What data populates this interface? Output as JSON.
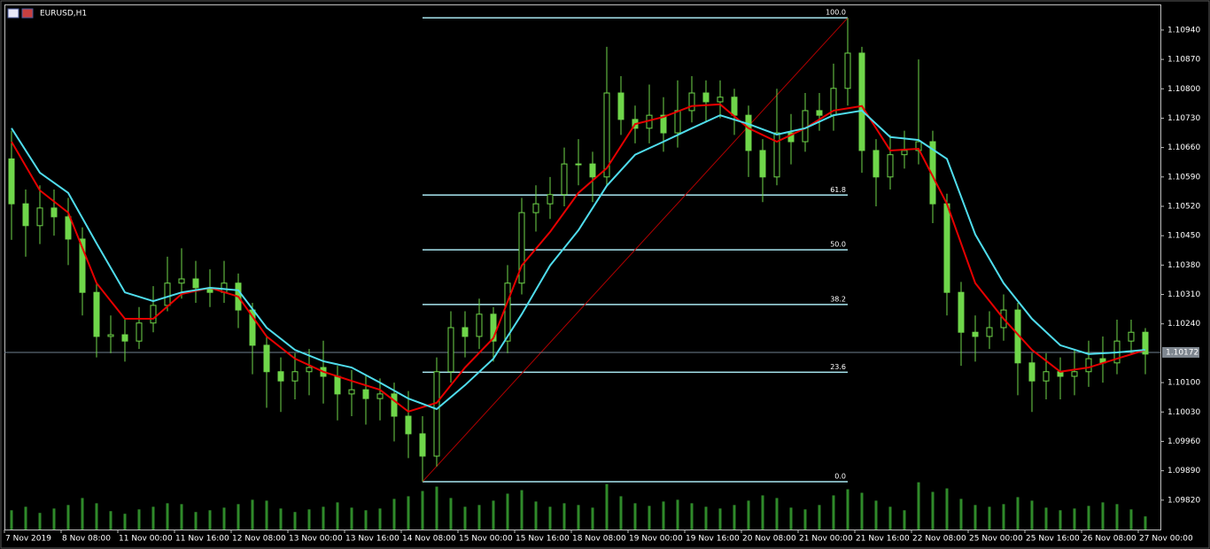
{
  "chart_data": {
    "type": "candlestick",
    "title": "EURUSD,H1",
    "categories": [
      "7 Nov 2019",
      null,
      null,
      null,
      "8 Nov 08:00",
      null,
      null,
      null,
      "11 Nov 00:00",
      null,
      null,
      null,
      "11 Nov 16:00",
      null,
      null,
      null,
      "12 Nov 08:00",
      null,
      null,
      null,
      "13 Nov 00:00",
      null,
      null,
      null,
      "13 Nov 16:00",
      null,
      null,
      null,
      "14 Nov 08:00",
      null,
      null,
      null,
      "15 Nov 00:00",
      null,
      null,
      null,
      "15 Nov 16:00",
      null,
      null,
      null,
      "18 Nov 08:00",
      null,
      null,
      null,
      "19 Nov 00:00",
      null,
      null,
      null,
      "19 Nov 16:00",
      null,
      null,
      null,
      "20 Nov 08:00",
      null,
      null,
      null,
      "21 Nov 00:00",
      null,
      null,
      null,
      "21 Nov 16:00",
      null,
      null,
      null,
      "22 Nov 08:00",
      null,
      null,
      null,
      "25 Nov 00:00",
      null,
      null,
      null,
      "25 Nov 16:00",
      null,
      null,
      null,
      "26 Nov 08:00",
      null,
      null,
      null,
      "27 Nov 00:00"
    ],
    "open": [
      1.10633,
      1.10526,
      1.10474,
      1.10516,
      1.10495,
      1.10442,
      1.10315,
      1.1021,
      1.10214,
      1.10199,
      1.10242,
      1.10284,
      1.10337,
      1.10347,
      1.10326,
      1.10315,
      1.10337,
      1.10273,
      1.10189,
      1.10126,
      1.10104,
      1.10126,
      1.10136,
      1.10115,
      1.10073,
      1.10083,
      1.10062,
      1.10073,
      1.1002,
      1.09978,
      1.09925,
      1.10126,
      1.10231,
      1.1021,
      1.10263,
      1.10199,
      1.10337,
      1.10505,
      1.10526,
      1.10548,
      1.10621,
      1.10621,
      1.1059,
      1.1079,
      1.10727,
      1.10706,
      1.10737,
      1.10695,
      1.10748,
      1.1079,
      1.10769,
      1.1078,
      1.10737,
      1.10653,
      1.1059,
      1.10695,
      1.10674,
      1.10748,
      1.10737,
      1.10801,
      1.10885,
      1.10653,
      1.1059,
      1.10643,
      1.10653,
      1.10674,
      1.10526,
      1.10315,
      1.1022,
      1.1021,
      1.10231,
      1.10273,
      1.10147,
      1.10104,
      1.10126,
      1.10115,
      1.10126,
      1.10157,
      1.10147,
      1.10199,
      1.1022
    ],
    "high": [
      1.107,
      1.1056,
      1.1057,
      1.1056,
      1.1054,
      1.1047,
      1.1034,
      1.1026,
      1.1025,
      1.1028,
      1.1033,
      1.104,
      1.1042,
      1.1039,
      1.1037,
      1.1039,
      1.1036,
      1.1029,
      1.1021,
      1.1016,
      1.1017,
      1.1018,
      1.102,
      1.1014,
      1.1013,
      1.1012,
      1.1011,
      1.101,
      1.1008,
      1.1002,
      1.1016,
      1.1027,
      1.1027,
      1.103,
      1.1028,
      1.1038,
      1.1054,
      1.1057,
      1.1059,
      1.1066,
      1.1068,
      1.1065,
      1.109,
      1.1083,
      1.1076,
      1.1081,
      1.1078,
      1.1082,
      1.1083,
      1.1082,
      1.1082,
      1.108,
      1.1076,
      1.1068,
      1.108,
      1.1074,
      1.1079,
      1.1079,
      1.1086,
      1.10969,
      1.109,
      1.1068,
      1.1069,
      1.107,
      1.1087,
      1.107,
      1.1055,
      1.1034,
      1.1026,
      1.1027,
      1.1031,
      1.1029,
      1.1017,
      1.1017,
      1.1016,
      1.1018,
      1.102,
      1.1021,
      1.1025,
      1.1025,
      1.1023
    ],
    "low": [
      1.1044,
      1.104,
      1.1043,
      1.1045,
      1.1038,
      1.1026,
      1.1016,
      1.1017,
      1.1015,
      1.1018,
      1.1022,
      1.1027,
      1.103,
      1.1029,
      1.1028,
      1.1029,
      1.1023,
      1.1012,
      1.1004,
      1.1003,
      1.1006,
      1.1007,
      1.1005,
      1.1001,
      1.1002,
      1.1,
      1.1001,
      1.0996,
      1.0992,
      1.09864,
      1.099,
      1.101,
      1.1016,
      1.1018,
      1.1015,
      1.1017,
      1.1031,
      1.1046,
      1.1049,
      1.1052,
      1.1057,
      1.1053,
      1.1057,
      1.1069,
      1.1067,
      1.1067,
      1.1065,
      1.1066,
      1.1072,
      1.1072,
      1.1073,
      1.1069,
      1.1059,
      1.1053,
      1.1057,
      1.1062,
      1.1065,
      1.107,
      1.107,
      1.1076,
      1.106,
      1.1052,
      1.1056,
      1.1061,
      1.1062,
      1.1048,
      1.1026,
      1.1014,
      1.1015,
      1.1018,
      1.102,
      1.1007,
      1.1003,
      1.1006,
      1.1006,
      1.1007,
      1.1009,
      1.101,
      1.1012,
      1.1017,
      1.1012
    ],
    "close": [
      1.10526,
      1.10474,
      1.10516,
      1.10495,
      1.10442,
      1.10315,
      1.1021,
      1.10214,
      1.10199,
      1.10242,
      1.10284,
      1.10337,
      1.10347,
      1.10326,
      1.10315,
      1.10337,
      1.10273,
      1.10189,
      1.10126,
      1.10104,
      1.10126,
      1.10136,
      1.10115,
      1.10073,
      1.10083,
      1.10062,
      1.10073,
      1.1002,
      1.09978,
      1.09925,
      1.10126,
      1.10231,
      1.1021,
      1.10263,
      1.10199,
      1.10337,
      1.10505,
      1.10526,
      1.10548,
      1.10621,
      1.10621,
      1.1059,
      1.1079,
      1.10727,
      1.10706,
      1.10737,
      1.10695,
      1.10748,
      1.1079,
      1.10769,
      1.1078,
      1.10737,
      1.10653,
      1.1059,
      1.10695,
      1.10674,
      1.10748,
      1.10737,
      1.10801,
      1.10885,
      1.10653,
      1.1059,
      1.10643,
      1.10653,
      1.10674,
      1.10526,
      1.10315,
      1.1022,
      1.1021,
      1.10231,
      1.10273,
      1.10147,
      1.10104,
      1.10126,
      1.10115,
      1.10126,
      1.10157,
      1.10147,
      1.10199,
      1.1022,
      1.10168
    ],
    "color": "#6fd64a",
    "series": [
      {
        "color": "#e60000",
        "x": [
          0,
          2,
          4,
          6,
          8,
          10,
          12,
          14,
          16,
          18,
          20,
          22,
          24,
          26,
          28,
          30,
          32,
          34,
          36,
          38,
          40,
          42,
          44,
          46,
          48,
          50,
          52,
          54,
          56,
          58,
          60,
          62,
          64,
          66,
          68,
          70,
          72,
          74,
          76,
          78,
          80
        ],
        "values": [
          1.10674,
          1.10558,
          1.10505,
          1.10337,
          1.10252,
          1.10252,
          1.10311,
          1.10326,
          1.10305,
          1.1021,
          1.10157,
          1.10126,
          1.10104,
          1.10083,
          1.10031,
          1.10052,
          1.10136,
          1.10206,
          1.10379,
          1.10459,
          1.10552,
          1.10611,
          1.10716,
          1.10733,
          1.10759,
          1.10763,
          1.10706,
          1.10674,
          1.10706,
          1.10748,
          1.10759,
          1.10653,
          1.10657,
          1.10526,
          1.10337,
          1.10252,
          1.10178,
          1.10126,
          1.10136,
          1.10157,
          1.10178
        ]
      },
      {
        "color": "#4fdcec",
        "x": [
          0,
          2,
          4,
          6,
          8,
          10,
          12,
          14,
          16,
          18,
          20,
          22,
          24,
          26,
          28,
          30,
          32,
          34,
          36,
          38,
          40,
          42,
          44,
          46,
          48,
          50,
          52,
          54,
          56,
          58,
          60,
          62,
          64,
          66,
          68,
          70,
          72,
          74,
          76,
          78,
          80
        ],
        "values": [
          1.10706,
          1.106,
          1.10552,
          1.10432,
          1.10315,
          1.10294,
          1.10315,
          1.10326,
          1.1032,
          1.10231,
          1.10178,
          1.10151,
          1.10136,
          1.101,
          1.10062,
          1.10037,
          1.10094,
          1.10157,
          1.10263,
          1.10379,
          1.10463,
          1.10569,
          1.10643,
          1.10674,
          1.10706,
          1.10737,
          1.10716,
          1.10691,
          1.10706,
          1.10737,
          1.10748,
          1.10685,
          1.10678,
          1.10633,
          1.10453,
          1.10337,
          1.10252,
          1.10189,
          1.10168,
          1.10172,
          1.10178
        ]
      }
    ],
    "volume": {
      "color": "#2f8a2a",
      "y2lim": [
        0,
        60000
      ],
      "values": [
        2200,
        2600,
        1900,
        2400,
        2800,
        3600,
        3000,
        2100,
        1800,
        2300,
        2600,
        3000,
        2900,
        2000,
        2200,
        2500,
        2900,
        3400,
        3300,
        2400,
        2000,
        2300,
        2600,
        3100,
        2500,
        2200,
        2400,
        3500,
        3800,
        4400,
        4900,
        3600,
        2600,
        2800,
        3300,
        4100,
        4500,
        3200,
        2600,
        3000,
        2800,
        2500,
        5200,
        3800,
        3000,
        2700,
        3200,
        3400,
        3000,
        2600,
        2400,
        2800,
        3300,
        3900,
        3600,
        2500,
        2300,
        2800,
        3900,
        4600,
        4200,
        3300,
        2600,
        2200,
        5400,
        4300,
        4700,
        3500,
        2800,
        2600,
        2900,
        3700,
        3300,
        2500,
        2200,
        2400,
        2700,
        3100,
        2900,
        2300,
        1500
      ]
    },
    "ylim": [
      1.0975,
      1.11001
    ],
    "yticks": [
      {
        "value": 1.1094,
        "label": "1.10940"
      },
      {
        "value": 1.1087,
        "label": "1.10870"
      },
      {
        "value": 1.108,
        "label": "1.10800"
      },
      {
        "value": 1.1073,
        "label": "1.10730"
      },
      {
        "value": 1.1066,
        "label": "1.10660"
      },
      {
        "value": 1.1059,
        "label": "1.10590"
      },
      {
        "value": 1.1052,
        "label": "1.10520"
      },
      {
        "value": 1.1045,
        "label": "1.10450"
      },
      {
        "value": 1.1038,
        "label": "1.10380"
      },
      {
        "value": 1.1031,
        "label": "1.10310"
      },
      {
        "value": 1.1024,
        "label": "1.10240"
      },
      {
        "value": 1.101,
        "label": "1.10100"
      },
      {
        "value": 1.1003,
        "label": "1.10030"
      },
      {
        "value": 1.0996,
        "label": "1.09960"
      },
      {
        "value": 1.0989,
        "label": "1.09890"
      },
      {
        "value": 1.0982,
        "label": "1.09820"
      }
    ],
    "grid": false,
    "current_price": 1.10172,
    "fibonacci": {
      "low": 1.09864,
      "high": 1.10969,
      "from": 29,
      "to": 59,
      "color": "#a8e6f0",
      "trend_color": "#b00000",
      "levels": [
        {
          "value": 0,
          "label": "0.0"
        },
        23.6,
        38.2,
        {
          "value": 50,
          "label": "50.0"
        },
        61.8,
        {
          "value": 100,
          "label": "100.0"
        }
      ]
    }
  }
}
